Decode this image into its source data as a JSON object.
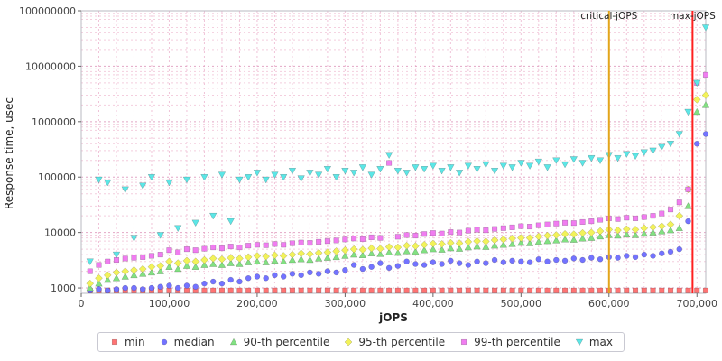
{
  "chart_data": {
    "type": "scatter",
    "title": "",
    "xlabel": "jOPS",
    "ylabel": "Response time, usec",
    "x_axis": {
      "min": 0,
      "max": 710000,
      "ticks": [
        0,
        100000,
        200000,
        300000,
        400000,
        500000,
        600000,
        700000
      ],
      "tick_labels": [
        "0",
        "100,000",
        "200,000",
        "300,000",
        "400,000",
        "500,000",
        "600,000",
        "700,000"
      ]
    },
    "y_axis": {
      "scale": "log",
      "min": 800,
      "max": 100000000,
      "ticks": [
        1000,
        10000,
        100000,
        1000000,
        10000000,
        100000000
      ],
      "tick_labels": [
        "1000",
        "10000",
        "100000",
        "1000000",
        "10000000",
        "100000000"
      ]
    },
    "grid": {
      "vertical_step": 20000,
      "log_minor": true
    },
    "legend_position": "bottom",
    "x": [
      10000,
      20000,
      30000,
      40000,
      50000,
      60000,
      70000,
      80000,
      90000,
      100000,
      110000,
      120000,
      130000,
      140000,
      150000,
      160000,
      170000,
      180000,
      190000,
      200000,
      210000,
      220000,
      230000,
      240000,
      250000,
      260000,
      270000,
      280000,
      290000,
      300000,
      310000,
      320000,
      330000,
      340000,
      350000,
      360000,
      370000,
      380000,
      390000,
      400000,
      410000,
      420000,
      430000,
      440000,
      450000,
      460000,
      470000,
      480000,
      490000,
      500000,
      510000,
      520000,
      530000,
      540000,
      550000,
      560000,
      570000,
      580000,
      590000,
      600000,
      610000,
      620000,
      630000,
      640000,
      650000,
      660000,
      670000,
      680000,
      690000,
      700000,
      710000
    ],
    "series": [
      {
        "name": "min",
        "marker": "square",
        "color": "#ff7373",
        "values": [
          900,
          900,
          900,
          900,
          900,
          900,
          900,
          900,
          900,
          900,
          900,
          900,
          900,
          900,
          900,
          900,
          900,
          900,
          900,
          900,
          900,
          900,
          900,
          900,
          900,
          900,
          900,
          900,
          900,
          900,
          900,
          900,
          900,
          900,
          900,
          900,
          900,
          900,
          900,
          900,
          900,
          900,
          900,
          900,
          900,
          900,
          900,
          900,
          900,
          900,
          900,
          900,
          900,
          900,
          900,
          900,
          900,
          900,
          900,
          900,
          900,
          900,
          900,
          900,
          900,
          900,
          900,
          900,
          900,
          900,
          900
        ]
      },
      {
        "name": "median",
        "marker": "circle",
        "color": "#7373ff",
        "values": [
          900,
          950,
          900,
          950,
          1000,
          1000,
          950,
          1000,
          1050,
          1100,
          1000,
          1100,
          1050,
          1200,
          1300,
          1200,
          1400,
          1300,
          1500,
          1600,
          1500,
          1700,
          1600,
          1800,
          1700,
          1900,
          1800,
          2000,
          1900,
          2100,
          2600,
          2200,
          2400,
          2800,
          2300,
          2500,
          3000,
          2700,
          2600,
          2900,
          2700,
          3100,
          2800,
          2600,
          3000,
          2800,
          3200,
          2900,
          3100,
          3000,
          2900,
          3300,
          3000,
          3200,
          3100,
          3400,
          3200,
          3500,
          3300,
          3600,
          3500,
          3800,
          3600,
          4000,
          3800,
          4200,
          4500,
          5000,
          16000,
          400000,
          600000
        ]
      },
      {
        "name": "90-th percentile",
        "marker": "triangle-up",
        "color": "#82e082",
        "values": [
          1000,
          1200,
          1400,
          1500,
          1600,
          1700,
          1800,
          1900,
          2000,
          2400,
          2200,
          2500,
          2400,
          2600,
          2700,
          2600,
          2800,
          2700,
          2900,
          3000,
          2900,
          3100,
          3000,
          3200,
          3300,
          3200,
          3400,
          3500,
          3600,
          3800,
          4000,
          3900,
          4200,
          4100,
          4400,
          4300,
          4600,
          4500,
          4800,
          5000,
          4900,
          5200,
          5100,
          5400,
          5600,
          5500,
          5800,
          6000,
          6200,
          6500,
          6400,
          6800,
          7000,
          7200,
          7500,
          7400,
          7800,
          8000,
          8500,
          9000,
          8800,
          9200,
          9000,
          9500,
          10000,
          10500,
          11000,
          12000,
          30000,
          1500000,
          2000000
        ]
      },
      {
        "name": "95-th percentile",
        "marker": "diamond",
        "color": "#f2f25a",
        "values": [
          1200,
          1500,
          1700,
          1900,
          2000,
          2100,
          2200,
          2400,
          2500,
          3000,
          2800,
          3100,
          3000,
          3200,
          3400,
          3300,
          3500,
          3400,
          3600,
          3800,
          3700,
          3900,
          3800,
          4000,
          4200,
          4100,
          4300,
          4400,
          4600,
          4800,
          5000,
          4900,
          5200,
          5100,
          5500,
          5400,
          5800,
          5700,
          6000,
          6300,
          6200,
          6500,
          6400,
          6800,
          7000,
          6900,
          7300,
          7500,
          7800,
          8000,
          8000,
          8500,
          8800,
          9000,
          9400,
          9300,
          9800,
          10000,
          10600,
          11300,
          11000,
          11500,
          11300,
          12000,
          12500,
          13000,
          14000,
          20000,
          60000,
          2500000,
          3000000
        ]
      },
      {
        "name": "99-th percentile",
        "marker": "square",
        "color": "#f07df0",
        "values": [
          2000,
          2600,
          3000,
          3200,
          3400,
          3500,
          3600,
          3800,
          4000,
          4800,
          4400,
          5000,
          4800,
          5100,
          5400,
          5200,
          5600,
          5400,
          5800,
          6000,
          5900,
          6200,
          6000,
          6400,
          6600,
          6500,
          6800,
          7000,
          7200,
          7500,
          7800,
          7600,
          8200,
          8000,
          180000,
          8400,
          9000,
          8800,
          9400,
          9800,
          9600,
          10200,
          10000,
          10800,
          11200,
          11000,
          11600,
          12000,
          12400,
          13000,
          12800,
          13500,
          14000,
          14500,
          15000,
          14800,
          15500,
          16000,
          17000,
          18000,
          17500,
          18500,
          18000,
          19000,
          20000,
          22000,
          26000,
          35000,
          60000,
          5000000,
          7000000
        ]
      },
      {
        "name": "max",
        "marker": "triangle-down",
        "color": "#5ce6e6",
        "values": [
          3000,
          90000,
          80000,
          4000,
          60000,
          8000,
          70000,
          100000,
          9000,
          80000,
          12000,
          90000,
          15000,
          100000,
          20000,
          110000,
          16000,
          90000,
          100000,
          120000,
          90000,
          110000,
          100000,
          130000,
          95000,
          120000,
          110000,
          140000,
          100000,
          130000,
          120000,
          150000,
          110000,
          140000,
          250000,
          130000,
          120000,
          150000,
          140000,
          160000,
          130000,
          150000,
          120000,
          160000,
          140000,
          170000,
          130000,
          160000,
          150000,
          180000,
          160000,
          190000,
          150000,
          200000,
          170000,
          210000,
          180000,
          220000,
          200000,
          250000,
          220000,
          260000,
          240000,
          280000,
          300000,
          350000,
          400000,
          600000,
          1500000,
          5000000,
          50000000
        ]
      }
    ],
    "vlines": [
      {
        "label": "critical-jOPS",
        "x": 600000,
        "color": "#e3a51b"
      },
      {
        "label": "max-jOPS",
        "x": 695000,
        "color": "#ff1f1f"
      }
    ]
  }
}
